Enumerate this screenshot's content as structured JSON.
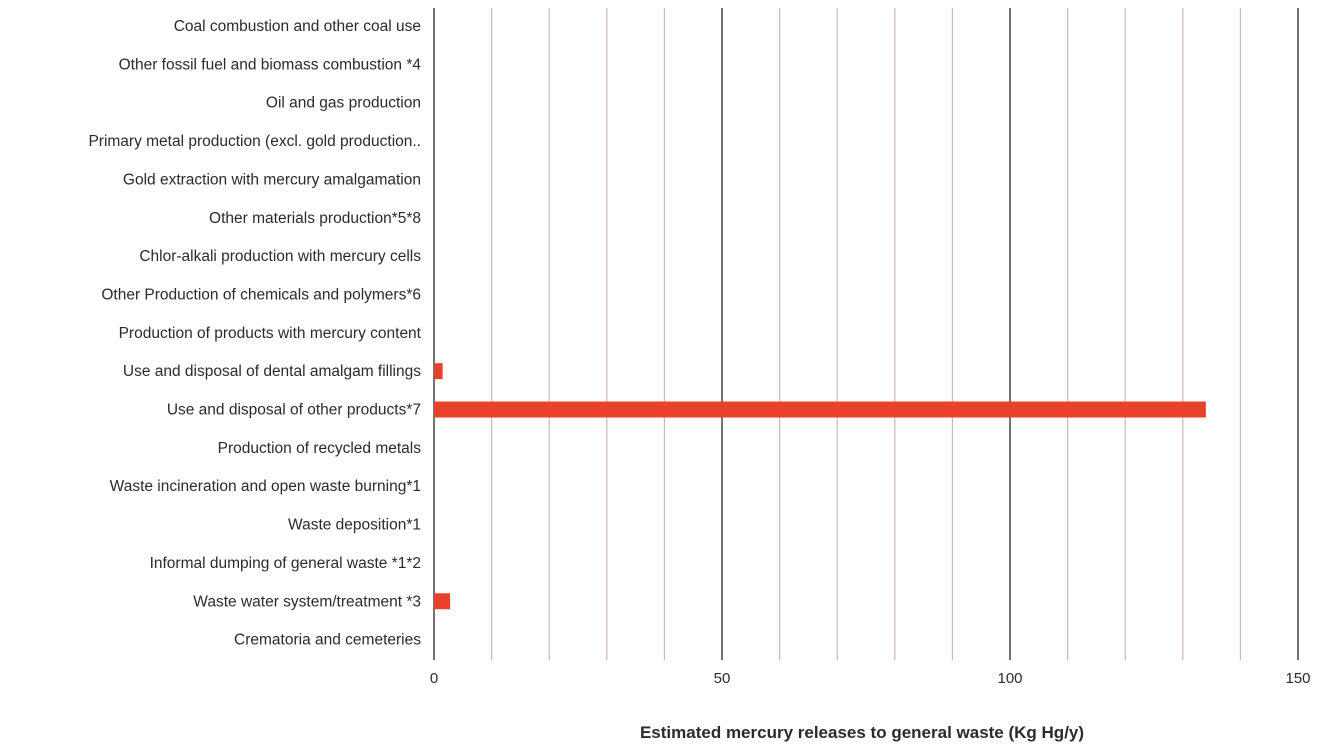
{
  "chart_data": {
    "type": "bar",
    "orientation": "horizontal",
    "title": "",
    "xlabel": "Estimated mercury releases to general waste (Kg Hg/y)",
    "ylabel": "",
    "xlim": [
      0,
      150
    ],
    "major_ticks": [
      0,
      50,
      100,
      150
    ],
    "tick_labels": [
      "0",
      "50",
      "100",
      "150"
    ],
    "minor_step": 10,
    "grid": true,
    "legend": "none",
    "bar_color": "#e8412c",
    "categories": [
      "Coal combustion and other coal use",
      "Other fossil fuel and biomass combustion *4",
      "Oil and gas production",
      "Primary metal production (excl. gold production..",
      "Gold extraction with mercury amalgamation",
      "Other materials production*5*8",
      "Chlor-alkali production with mercury cells",
      "Other Production of chemicals and polymers*6",
      "Production of products with mercury content",
      "Use and disposal of dental amalgam fillings",
      "Use and disposal of other products*7",
      "Production of recycled metals",
      "Waste incineration and open waste burning*1",
      "Waste deposition*1",
      "Informal dumping of general waste *1*2",
      "Waste water system/treatment *3",
      "Crematoria and cemeteries"
    ],
    "values": [
      0,
      0,
      0,
      0,
      0,
      0,
      0,
      0,
      0,
      1.5,
      134,
      0,
      0,
      0,
      0,
      2.8,
      0
    ]
  }
}
